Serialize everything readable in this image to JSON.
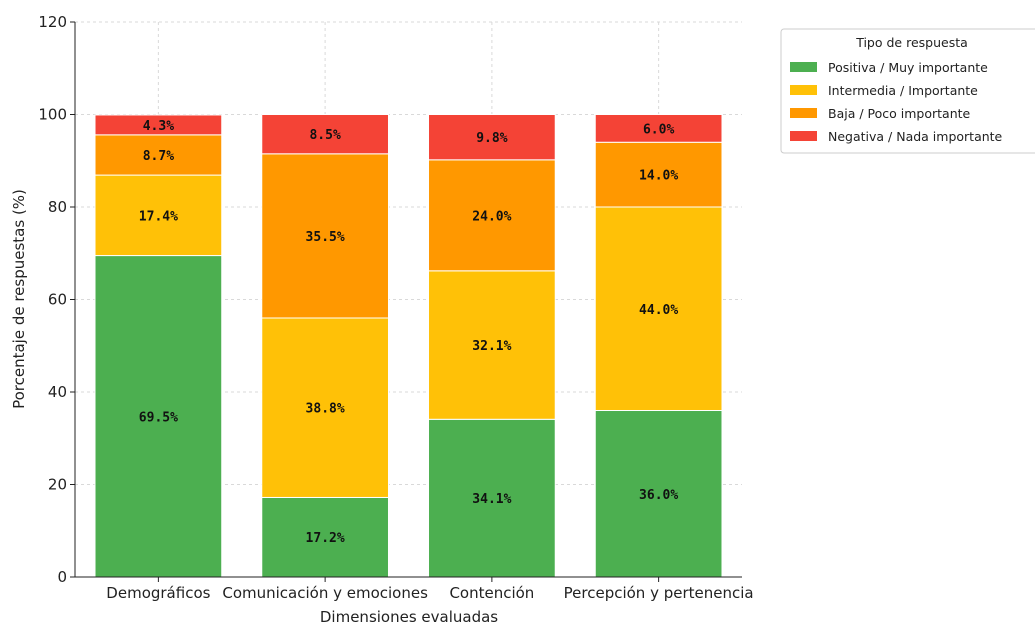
{
  "chart_data": {
    "type": "bar",
    "stacked": true,
    "categories": [
      "Demográficos",
      "Comunicación y emociones",
      "Contención",
      "Percepción y pertenencia"
    ],
    "series": [
      {
        "name": "Positiva / Muy importante",
        "color": "#4caf50",
        "values": [
          69.5,
          17.2,
          34.1,
          36.0
        ],
        "labels": [
          "69.5%",
          "17.2%",
          "34.1%",
          "36.0%"
        ]
      },
      {
        "name": "Intermedia / Importante",
        "color": "#ffc107",
        "values": [
          17.4,
          38.8,
          32.1,
          44.0
        ],
        "labels": [
          "17.4%",
          "38.8%",
          "32.1%",
          "44.0%"
        ]
      },
      {
        "name": "Baja / Poco importante",
        "color": "#ff9800",
        "values": [
          8.7,
          35.5,
          24.0,
          14.0
        ],
        "labels": [
          "8.7%",
          "35.5%",
          "24.0%",
          "14.0%"
        ]
      },
      {
        "name": "Negativa / Nada importante",
        "color": "#f44336",
        "values": [
          4.3,
          8.5,
          9.8,
          6.0
        ],
        "labels": [
          "4.3%",
          "8.5%",
          "9.8%",
          "6.0%"
        ]
      }
    ],
    "xlabel": "Dimensiones evaluadas",
    "ylabel": "Porcentaje de respuestas (%)",
    "ylim": [
      0,
      120
    ],
    "yticks": [
      0,
      20,
      40,
      60,
      80,
      100,
      120
    ],
    "grid": true,
    "legend": {
      "title": "Tipo de respuesta",
      "placement": "outside-top-right"
    }
  }
}
